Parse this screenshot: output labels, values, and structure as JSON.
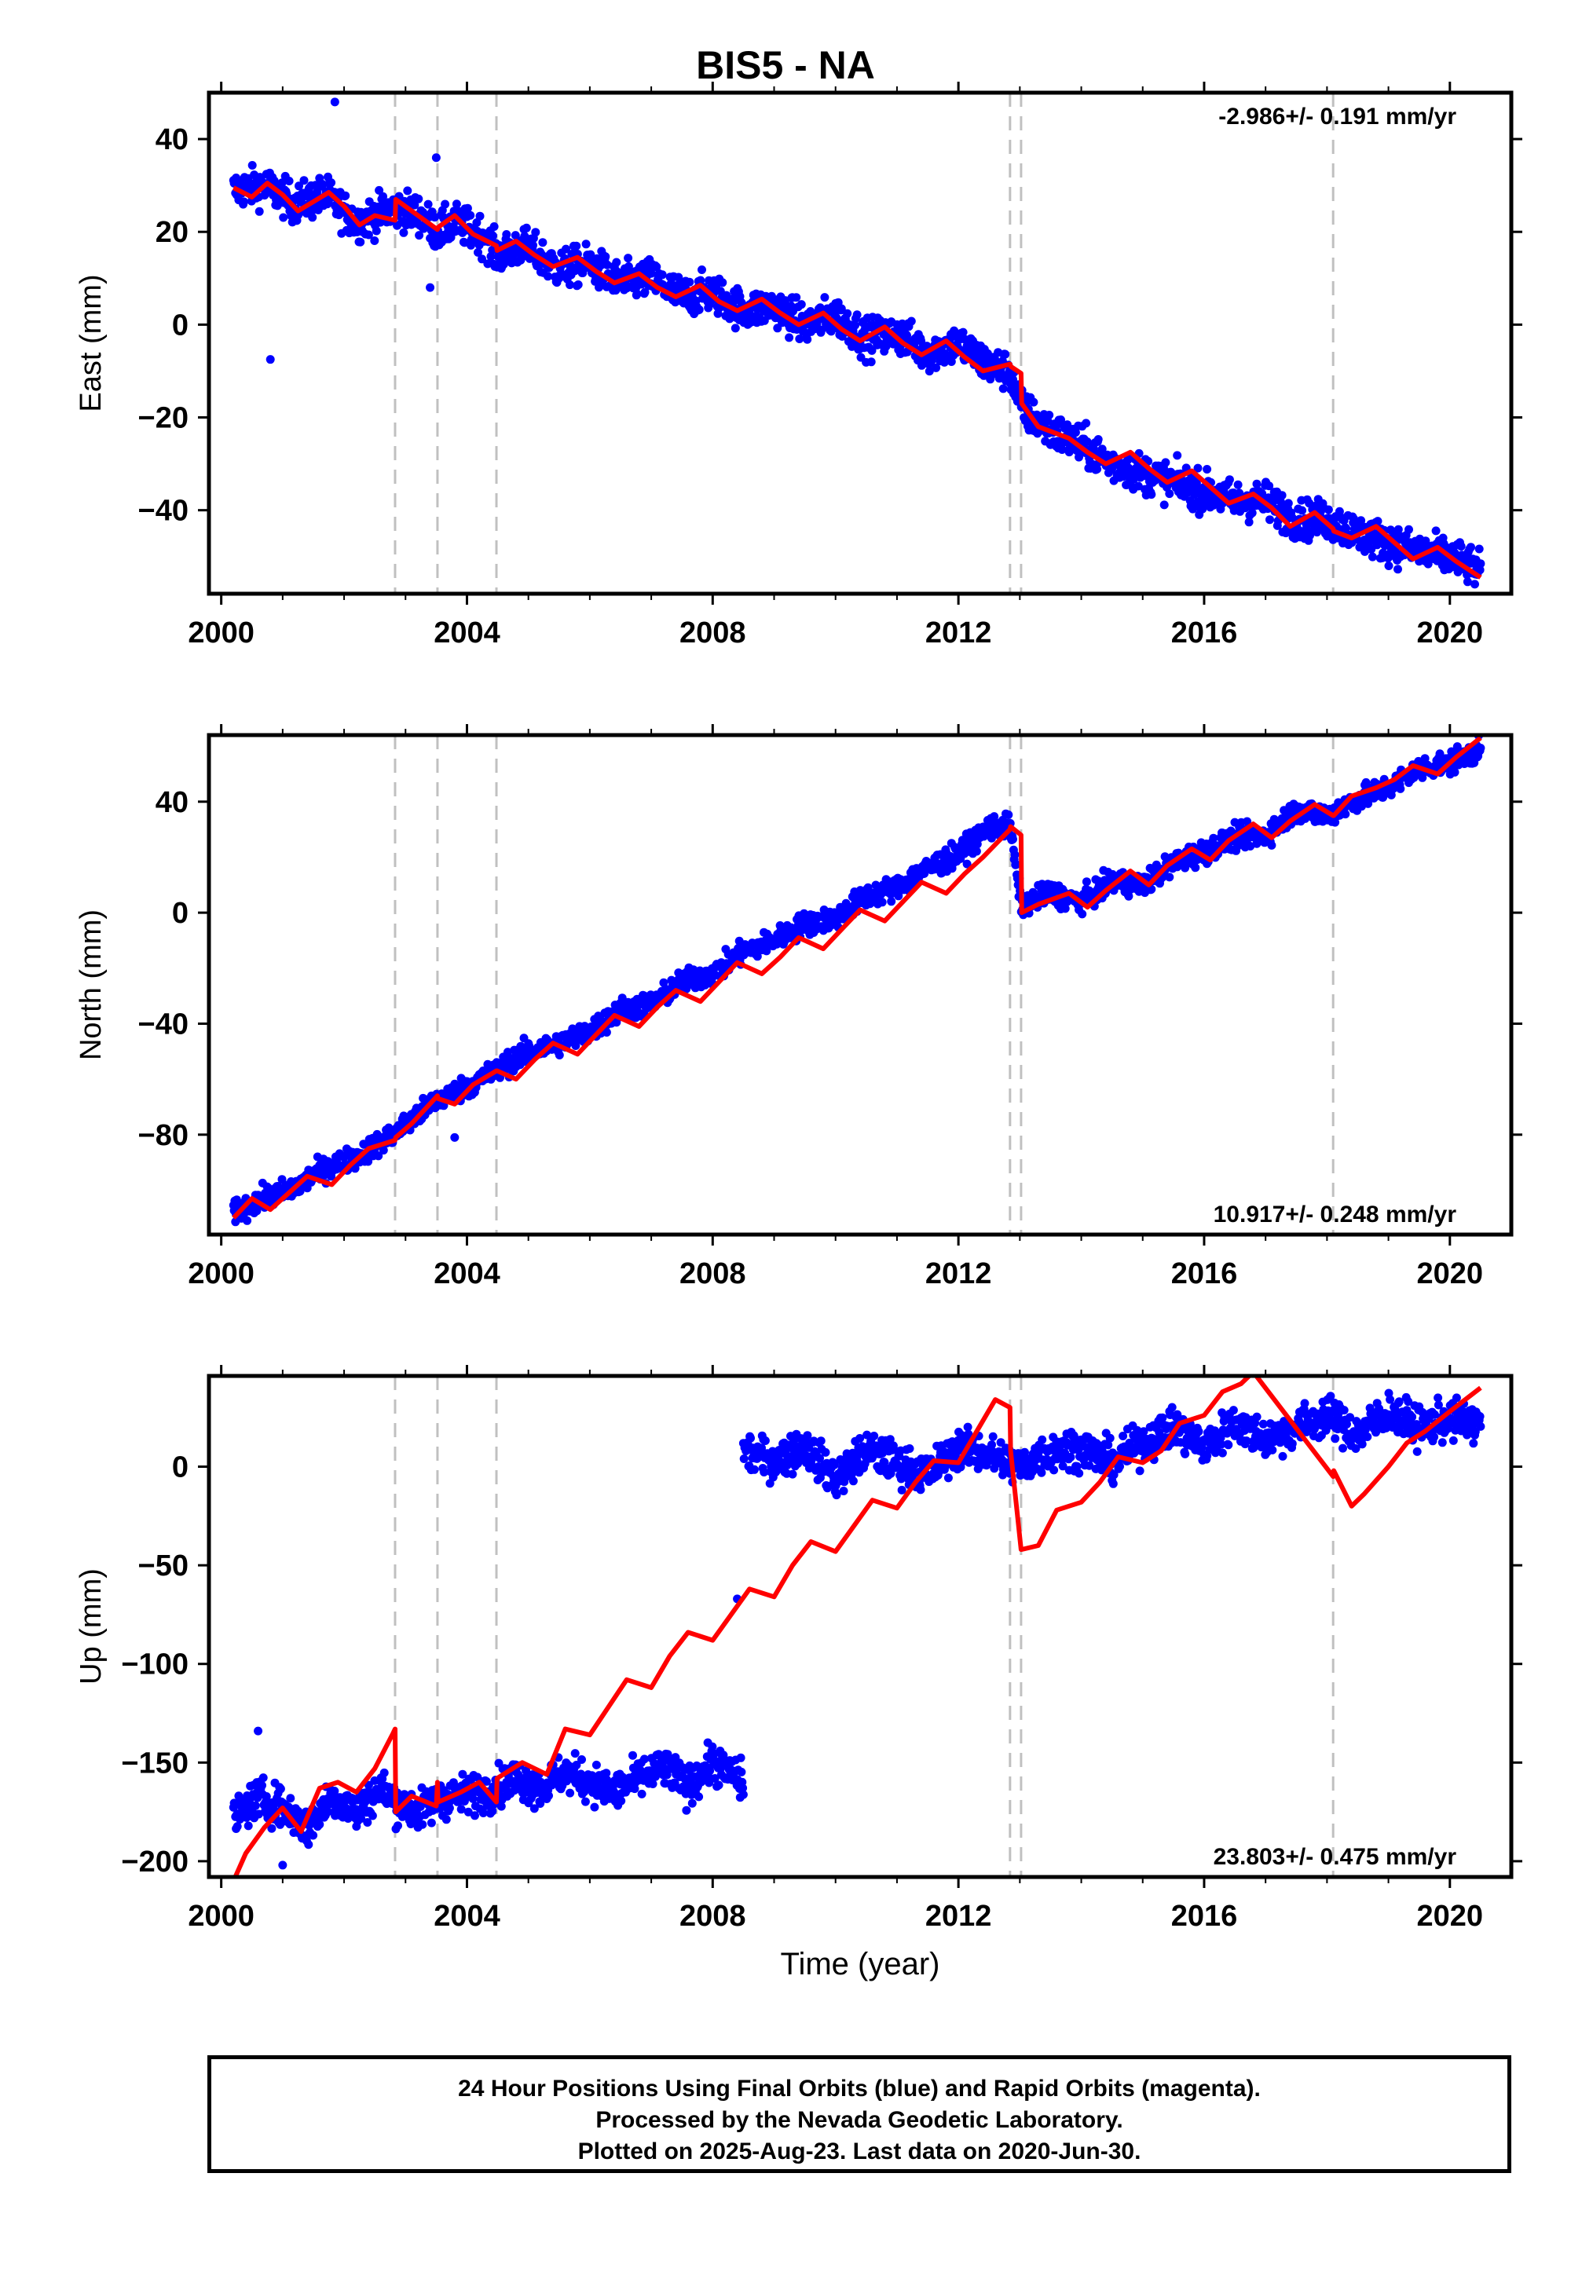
{
  "title": "BIS5 - NA",
  "xlabel": "Time (year)",
  "x_ticks": [
    2000,
    2004,
    2008,
    2012,
    2016,
    2020
  ],
  "xlim": [
    1999.8,
    2021.0
  ],
  "equipment_changes": [
    2002.83,
    2003.52,
    2004.48,
    2012.84,
    2013.02,
    2018.1
  ],
  "colors": {
    "data": "#0000ff",
    "model": "#ff0000",
    "event": "#c0c0c0",
    "frame": "#000000"
  },
  "caption": {
    "line1": "24 Hour Positions Using Final Orbits (blue) and Rapid Orbits (magenta).",
    "line2": "Processed by the Nevada Geodetic Laboratory.",
    "line3": "Plotted on 2025-Aug-23. Last data on 2020-Jun-30."
  },
  "chart_data": [
    {
      "type": "scatter",
      "component": "east",
      "ylabel": "East (mm)",
      "ylim": [
        -58,
        50
      ],
      "y_ticks": [
        40,
        20,
        0,
        -20,
        -40
      ],
      "velocity": "-2.986+/- 0.191 mm/yr",
      "series": [
        {
          "x": [
            2000.2,
            2000.7,
            2001.2,
            2001.7,
            2002.2,
            2002.8,
            2003.2,
            2003.52,
            2003.8,
            2004.3,
            2004.48,
            2004.9,
            2005.5,
            2006.0,
            2006.5,
            2007.0,
            2007.5,
            2008.0,
            2008.5,
            2009.0,
            2009.5,
            2010.0,
            2010.5,
            2011.0,
            2011.5,
            2012.0,
            2012.5,
            2012.84,
            2013.02,
            2013.5,
            2014.0,
            2014.5,
            2015.0,
            2015.5,
            2016.0,
            2016.5,
            2017.0,
            2017.5,
            2018.0,
            2018.5,
            2019.0,
            2019.5,
            2020.0,
            2020.5
          ],
          "y": [
            29,
            30,
            26,
            28,
            22,
            25,
            24,
            20,
            22,
            19,
            15,
            17,
            12,
            13,
            9,
            10,
            6,
            7,
            3,
            4,
            0,
            2,
            -3,
            -2,
            -6,
            -4,
            -9,
            -10,
            -18,
            -23,
            -26,
            -30,
            -32,
            -34,
            -36,
            -38,
            -38,
            -42,
            -42,
            -45,
            -47,
            -49,
            -50,
            -53
          ]
        },
        {
          "x": [
            2000.2,
            2000.5,
            2000.75,
            2001.0,
            2001.25,
            2001.5,
            2001.75,
            2002.0,
            2002.25,
            2002.5,
            2002.83,
            2002.84,
            2003.1,
            2003.52,
            2003.53,
            2003.8,
            2004.1,
            2004.48,
            2004.49,
            2004.8,
            2005.1,
            2005.4,
            2005.8,
            2006.1,
            2006.4,
            2006.8,
            2007.1,
            2007.4,
            2007.8,
            2008.1,
            2008.4,
            2008.8,
            2009.1,
            2009.4,
            2009.8,
            2010.1,
            2010.4,
            2010.8,
            2011.1,
            2011.4,
            2011.8,
            2012.1,
            2012.4,
            2012.84,
            2012.85,
            2013.02,
            2013.03,
            2013.3,
            2013.8,
            2014.1,
            2014.4,
            2014.8,
            2015.1,
            2015.4,
            2015.8,
            2016.1,
            2016.4,
            2016.8,
            2017.1,
            2017.4,
            2017.8,
            2018.1,
            2018.11,
            2018.4,
            2018.8,
            2019.1,
            2019.4,
            2019.8,
            2020.1,
            2020.5
          ],
          "y": [
            29.5,
            27.5,
            30.5,
            28,
            24.5,
            26.5,
            28.5,
            25.5,
            21.5,
            23.5,
            22.5,
            27,
            24.5,
            20.5,
            21,
            23.5,
            19.5,
            17,
            16,
            18,
            15,
            12.5,
            14.5,
            11.5,
            9,
            11,
            8,
            6,
            8.5,
            5,
            3,
            5.5,
            2.5,
            0,
            2.5,
            -1,
            -3.5,
            -0.5,
            -4,
            -6.5,
            -3.5,
            -7,
            -10,
            -8.5,
            -9,
            -10.5,
            -17,
            -22,
            -24.5,
            -27.5,
            -30,
            -27.5,
            -31,
            -34,
            -31.5,
            -35,
            -38.5,
            -36.5,
            -39.5,
            -43.5,
            -40.5,
            -44,
            -44.5,
            -46,
            -43.5,
            -47,
            -50.5,
            -48,
            -51,
            -54.5
          ]
        }
      ]
    },
    {
      "type": "scatter",
      "component": "north",
      "ylabel": "North (mm)",
      "ylim": [
        -116,
        64
      ],
      "y_ticks": [
        40,
        0,
        -40,
        -80
      ],
      "velocity": "10.917+/- 0.248 mm/yr",
      "series": [
        {
          "x": [
            2000.2,
            2000.7,
            2001.2,
            2001.7,
            2002.2,
            2002.8,
            2003.2,
            2003.52,
            2003.8,
            2004.3,
            2004.48,
            2004.9,
            2005.5,
            2006.0,
            2006.5,
            2007.0,
            2007.5,
            2008.0,
            2008.5,
            2009.0,
            2009.5,
            2010.0,
            2010.5,
            2011.0,
            2011.5,
            2012.0,
            2012.5,
            2012.84,
            2013.02,
            2013.5,
            2014.0,
            2014.5,
            2015.0,
            2015.5,
            2016.0,
            2016.5,
            2017.0,
            2017.5,
            2018.0,
            2018.5,
            2019.0,
            2019.5,
            2020.0,
            2020.5
          ],
          "y": [
            -108,
            -103,
            -99,
            -92,
            -88,
            -80,
            -73,
            -67,
            -65,
            -59,
            -57,
            -51,
            -47,
            -43,
            -35,
            -33,
            -25,
            -22,
            -14,
            -10,
            -4,
            -2,
            6,
            9,
            16,
            21,
            31,
            31,
            3,
            7,
            4,
            11,
            10,
            18,
            22,
            27,
            28,
            37,
            35,
            41,
            45,
            52,
            54,
            59
          ]
        },
        {
          "x": [
            2000.2,
            2000.5,
            2000.8,
            2001.1,
            2001.4,
            2001.8,
            2002.1,
            2002.4,
            2002.83,
            2002.84,
            2003.1,
            2003.52,
            2003.53,
            2003.8,
            2004.1,
            2004.48,
            2004.49,
            2004.8,
            2005.1,
            2005.4,
            2005.8,
            2006.1,
            2006.4,
            2006.8,
            2007.1,
            2007.4,
            2007.8,
            2008.1,
            2008.4,
            2008.8,
            2009.1,
            2009.4,
            2009.8,
            2010.1,
            2010.4,
            2010.8,
            2011.1,
            2011.4,
            2011.8,
            2012.1,
            2012.4,
            2012.84,
            2012.85,
            2013.02,
            2013.03,
            2013.3,
            2013.8,
            2014.1,
            2014.4,
            2014.8,
            2015.1,
            2015.4,
            2015.8,
            2016.1,
            2016.4,
            2016.8,
            2017.1,
            2017.4,
            2017.8,
            2018.1,
            2018.11,
            2018.4,
            2018.8,
            2019.1,
            2019.4,
            2019.8,
            2020.1,
            2020.5
          ],
          "y": [
            -110,
            -103,
            -107,
            -101,
            -95,
            -98,
            -91,
            -85,
            -82,
            -81,
            -76,
            -66,
            -67,
            -69,
            -62,
            -57,
            -57,
            -60,
            -53,
            -47,
            -51,
            -44,
            -37,
            -41,
            -34,
            -28,
            -32,
            -25,
            -18,
            -22,
            -16,
            -9,
            -13,
            -6,
            1,
            -3,
            4,
            11,
            7,
            14,
            20,
            30,
            31,
            28,
            0,
            3,
            7,
            2,
            8,
            15,
            10,
            17,
            23,
            19,
            26,
            32,
            27,
            33,
            39,
            35,
            35,
            42,
            45,
            48,
            53,
            50,
            56,
            63
          ]
        }
      ]
    },
    {
      "type": "scatter",
      "component": "up",
      "ylabel": "Up (mm)",
      "ylim": [
        -208,
        46
      ],
      "y_ticks": [
        0,
        -50,
        -100,
        -150,
        -200
      ],
      "velocity": "23.803+/- 0.475 mm/yr",
      "series": [
        {
          "x": [
            2000.2,
            2000.6,
            2001.0,
            2001.4,
            2001.8,
            2002.2,
            2002.6,
            2002.84,
            2003.2,
            2003.6,
            2004.0,
            2004.4,
            2004.8,
            2005.2,
            2005.6,
            2006.0,
            2006.4,
            2006.8,
            2007.2,
            2007.6,
            2008.0,
            2008.5
          ],
          "y": [
            -178,
            -168,
            -173,
            -183,
            -167,
            -175,
            -163,
            -170,
            -175,
            -168,
            -166,
            -164,
            -158,
            -163,
            -155,
            -160,
            -165,
            -158,
            -153,
            -162,
            -150,
            -160
          ]
        },
        {
          "x": [
            2008.5,
            2009.0,
            2009.5,
            2010.0,
            2010.5,
            2011.0,
            2011.5,
            2012.0,
            2012.5,
            2013.0,
            2013.5,
            2014.0,
            2014.5,
            2015.0,
            2015.5,
            2016.0,
            2016.5,
            2017.0,
            2017.5,
            2018.0,
            2018.5,
            2019.0,
            2019.5,
            2020.0,
            2020.5
          ],
          "y": [
            8,
            3,
            10,
            -6,
            8,
            2,
            -4,
            10,
            6,
            0,
            8,
            10,
            2,
            12,
            20,
            10,
            22,
            14,
            20,
            26,
            16,
            28,
            20,
            24,
            22
          ]
        },
        {
          "x": [
            2000.2,
            2000.4,
            2000.7,
            2001.0,
            2001.3,
            2001.6,
            2001.9,
            2002.2,
            2002.5,
            2002.8,
            2002.83,
            2002.84,
            2003.1,
            2003.5,
            2003.52,
            2003.53,
            2003.9,
            2004.2,
            2004.48,
            2004.49,
            2004.9,
            2005.3,
            2005.6,
            2006.0,
            2006.3,
            2006.6,
            2007.0,
            2007.3,
            2007.6,
            2008.0,
            2008.3,
            2008.6,
            2009.0,
            2009.3,
            2009.6,
            2010.0,
            2010.3,
            2010.6,
            2011.0,
            2011.3,
            2011.6,
            2012.0,
            2012.3,
            2012.6,
            2012.84,
            2012.85,
            2013.02,
            2013.03,
            2013.3,
            2013.6,
            2014.0,
            2014.3,
            2014.6,
            2015.0,
            2015.3,
            2015.6,
            2016.0,
            2016.3,
            2016.6,
            2016.8,
            2018.1,
            2018.11,
            2018.4,
            2018.6,
            2019.0,
            2019.3,
            2019.6,
            2020.0,
            2020.5
          ],
          "y": [
            -210,
            -196,
            -183,
            -173,
            -185,
            -163,
            -160,
            -165,
            -153,
            -135,
            -133,
            -175,
            -167,
            -172,
            -160,
            -170,
            -165,
            -160,
            -170,
            -158,
            -150,
            -156,
            -133,
            -136,
            -122,
            -108,
            -112,
            -96,
            -84,
            -88,
            -75,
            -62,
            -66,
            -50,
            -38,
            -43,
            -30,
            -17,
            -21,
            -8,
            3,
            2,
            18,
            34,
            30,
            8,
            -42,
            -42,
            -40,
            -22,
            -18,
            -8,
            5,
            2,
            8,
            22,
            26,
            38,
            42,
            48,
            -5,
            -2,
            -20,
            -14,
            0,
            12,
            18,
            28,
            40
          ]
        }
      ]
    }
  ]
}
